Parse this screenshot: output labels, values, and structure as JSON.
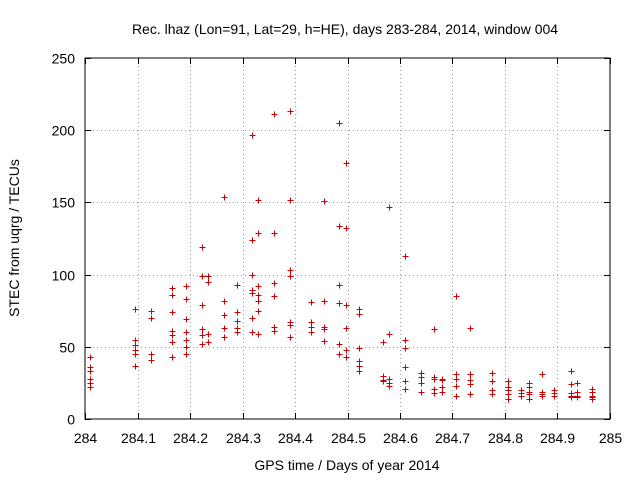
{
  "chart_data": {
    "type": "scatter",
    "title": "Rec. lhaz (Lon=91, Lat=29, h=HE), days 283-284, 2014, window 004",
    "xlabel": "GPS time / Days of year 2014",
    "ylabel": "STEC from uqrg / TECUs",
    "xlim": [
      284,
      285
    ],
    "ylim": [
      0,
      250
    ],
    "xticks": [
      284,
      284.1,
      284.2,
      284.3,
      284.4,
      284.5,
      284.6,
      284.7,
      284.8,
      284.9,
      285
    ],
    "xtick_labels": [
      "284",
      "284.1",
      "284.2",
      "284.3",
      "284.4",
      "284.5",
      "284.6",
      "284.7",
      "284.8",
      "284.9",
      "285"
    ],
    "yticks": [
      0,
      50,
      100,
      150,
      200,
      250
    ],
    "ytick_labels": [
      "0",
      "50",
      "100",
      "150",
      "200",
      "250"
    ],
    "grid": true,
    "marker": "+",
    "marker_color": "#cc0000",
    "series": [
      {
        "name": "STEC",
        "points": [
          [
            284.01,
            43
          ],
          [
            284.01,
            36
          ],
          [
            284.01,
            33
          ],
          [
            284.01,
            28
          ],
          [
            284.01,
            25
          ],
          [
            284.01,
            22
          ],
          [
            284.095,
            76
          ],
          [
            284.095,
            55
          ],
          [
            284.095,
            51
          ],
          [
            284.095,
            48
          ],
          [
            284.095,
            45
          ],
          [
            284.095,
            37
          ],
          [
            284.125,
            75
          ],
          [
            284.125,
            70
          ],
          [
            284.125,
            45
          ],
          [
            284.125,
            41
          ],
          [
            284.165,
            91
          ],
          [
            284.165,
            86
          ],
          [
            284.165,
            74
          ],
          [
            284.165,
            61
          ],
          [
            284.165,
            58
          ],
          [
            284.165,
            53
          ],
          [
            284.165,
            43
          ],
          [
            284.193,
            92
          ],
          [
            284.193,
            83
          ],
          [
            284.193,
            69
          ],
          [
            284.193,
            60
          ],
          [
            284.193,
            55
          ],
          [
            284.193,
            50
          ],
          [
            284.193,
            45
          ],
          [
            284.222,
            119
          ],
          [
            284.222,
            99
          ],
          [
            284.222,
            79
          ],
          [
            284.222,
            62
          ],
          [
            284.222,
            58
          ],
          [
            284.222,
            52
          ],
          [
            284.235,
            99
          ],
          [
            284.235,
            95
          ],
          [
            284.235,
            59
          ],
          [
            284.235,
            53
          ],
          [
            284.265,
            154
          ],
          [
            284.265,
            82
          ],
          [
            284.265,
            72
          ],
          [
            284.265,
            63
          ],
          [
            284.265,
            57
          ],
          [
            284.29,
            93
          ],
          [
            284.29,
            74
          ],
          [
            284.29,
            68
          ],
          [
            284.29,
            63
          ],
          [
            284.29,
            60
          ],
          [
            284.318,
            197
          ],
          [
            284.318,
            124
          ],
          [
            284.318,
            100
          ],
          [
            284.318,
            89
          ],
          [
            284.318,
            87
          ],
          [
            284.318,
            70
          ],
          [
            284.318,
            60
          ],
          [
            284.33,
            152
          ],
          [
            284.33,
            129
          ],
          [
            284.33,
            92
          ],
          [
            284.33,
            86
          ],
          [
            284.33,
            82
          ],
          [
            284.33,
            75
          ],
          [
            284.33,
            59
          ],
          [
            284.36,
            211
          ],
          [
            284.36,
            129
          ],
          [
            284.36,
            94
          ],
          [
            284.36,
            85
          ],
          [
            284.36,
            64
          ],
          [
            284.36,
            61
          ],
          [
            284.39,
            213
          ],
          [
            284.39,
            152
          ],
          [
            284.39,
            103
          ],
          [
            284.39,
            99
          ],
          [
            284.39,
            67
          ],
          [
            284.39,
            65
          ],
          [
            284.39,
            57
          ],
          [
            284.43,
            81
          ],
          [
            284.43,
            67
          ],
          [
            284.43,
            64
          ],
          [
            284.43,
            60
          ],
          [
            284.455,
            151
          ],
          [
            284.455,
            82
          ],
          [
            284.455,
            64
          ],
          [
            284.455,
            62
          ],
          [
            284.455,
            54
          ],
          [
            284.483,
            205
          ],
          [
            284.483,
            134
          ],
          [
            284.483,
            93
          ],
          [
            284.483,
            80
          ],
          [
            284.483,
            52
          ],
          [
            284.483,
            45
          ],
          [
            284.497,
            177
          ],
          [
            284.497,
            132
          ],
          [
            284.497,
            79
          ],
          [
            284.497,
            63
          ],
          [
            284.497,
            48
          ],
          [
            284.497,
            43
          ],
          [
            284.522,
            76
          ],
          [
            284.522,
            73
          ],
          [
            284.522,
            49
          ],
          [
            284.522,
            40
          ],
          [
            284.522,
            37
          ],
          [
            284.522,
            33
          ],
          [
            284.568,
            53
          ],
          [
            284.568,
            30
          ],
          [
            284.568,
            27
          ],
          [
            284.568,
            26
          ],
          [
            284.58,
            147
          ],
          [
            284.58,
            59
          ],
          [
            284.58,
            28
          ],
          [
            284.58,
            25
          ],
          [
            284.58,
            23
          ],
          [
            284.61,
            113
          ],
          [
            284.61,
            55
          ],
          [
            284.61,
            49
          ],
          [
            284.61,
            36
          ],
          [
            284.61,
            26
          ],
          [
            284.61,
            21
          ],
          [
            284.64,
            32
          ],
          [
            284.64,
            29
          ],
          [
            284.64,
            25
          ],
          [
            284.64,
            19
          ],
          [
            284.665,
            62
          ],
          [
            284.665,
            29
          ],
          [
            284.665,
            28
          ],
          [
            284.665,
            21
          ],
          [
            284.665,
            18
          ],
          [
            284.68,
            28
          ],
          [
            284.68,
            27
          ],
          [
            284.68,
            22
          ],
          [
            284.68,
            19
          ],
          [
            284.707,
            85
          ],
          [
            284.707,
            31
          ],
          [
            284.707,
            28
          ],
          [
            284.707,
            23
          ],
          [
            284.707,
            16
          ],
          [
            284.733,
            63
          ],
          [
            284.733,
            31
          ],
          [
            284.733,
            27
          ],
          [
            284.733,
            24
          ],
          [
            284.733,
            17
          ],
          [
            284.775,
            32
          ],
          [
            284.775,
            26
          ],
          [
            284.775,
            20
          ],
          [
            284.775,
            17
          ],
          [
            284.805,
            26
          ],
          [
            284.805,
            22
          ],
          [
            284.805,
            20
          ],
          [
            284.805,
            17
          ],
          [
            284.805,
            14
          ],
          [
            284.83,
            20
          ],
          [
            284.83,
            18
          ],
          [
            284.83,
            16
          ],
          [
            284.845,
            25
          ],
          [
            284.845,
            22
          ],
          [
            284.845,
            19
          ],
          [
            284.845,
            17
          ],
          [
            284.845,
            14
          ],
          [
            284.87,
            31
          ],
          [
            284.87,
            19
          ],
          [
            284.87,
            17
          ],
          [
            284.87,
            16
          ],
          [
            284.893,
            20
          ],
          [
            284.893,
            18
          ],
          [
            284.893,
            16
          ],
          [
            284.925,
            33
          ],
          [
            284.925,
            24
          ],
          [
            284.925,
            18
          ],
          [
            284.925,
            16
          ],
          [
            284.925,
            15
          ],
          [
            284.938,
            25
          ],
          [
            284.938,
            19
          ],
          [
            284.938,
            16
          ],
          [
            284.938,
            15
          ],
          [
            284.965,
            21
          ],
          [
            284.965,
            19
          ],
          [
            284.965,
            16
          ],
          [
            284.965,
            15
          ],
          [
            284.965,
            14
          ]
        ]
      }
    ]
  }
}
